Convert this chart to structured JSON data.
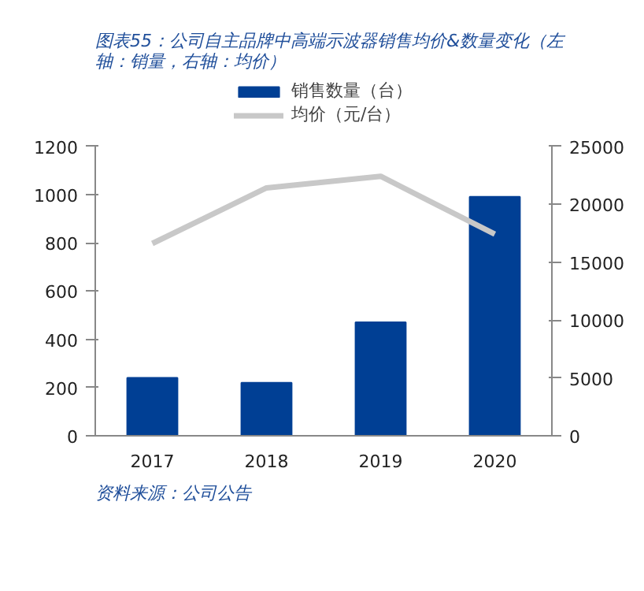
{
  "chart_data": {
    "type": "bar",
    "title": "图表55：公司自主品牌中高端示波器销售均价&数量变化（左轴：销量，右轴：均价）",
    "categories": [
      "2017",
      "2018",
      "2019",
      "2020"
    ],
    "series": [
      {
        "name": "销售数量（台）",
        "color": "#003f94",
        "values": [
          240,
          220,
          470,
          990
        ]
      },
      {
        "name": "均价（元/台）",
        "color": "#c8c8c8",
        "type": "line",
        "axis": "y2",
        "values": [
          16600,
          21400,
          22400,
          17400
        ]
      }
    ],
    "ylim": [
      0,
      1200
    ],
    "yticks": [
      0,
      200,
      400,
      600,
      800,
      1000,
      1200
    ],
    "y2lim": [
      0,
      25000
    ],
    "y2ticks": [
      0,
      5000,
      10000,
      15000,
      20000,
      25000
    ],
    "grid": false,
    "legend": "top",
    "line_style": "solid",
    "annotations": [
      "资料来源：公司公告"
    ]
  }
}
